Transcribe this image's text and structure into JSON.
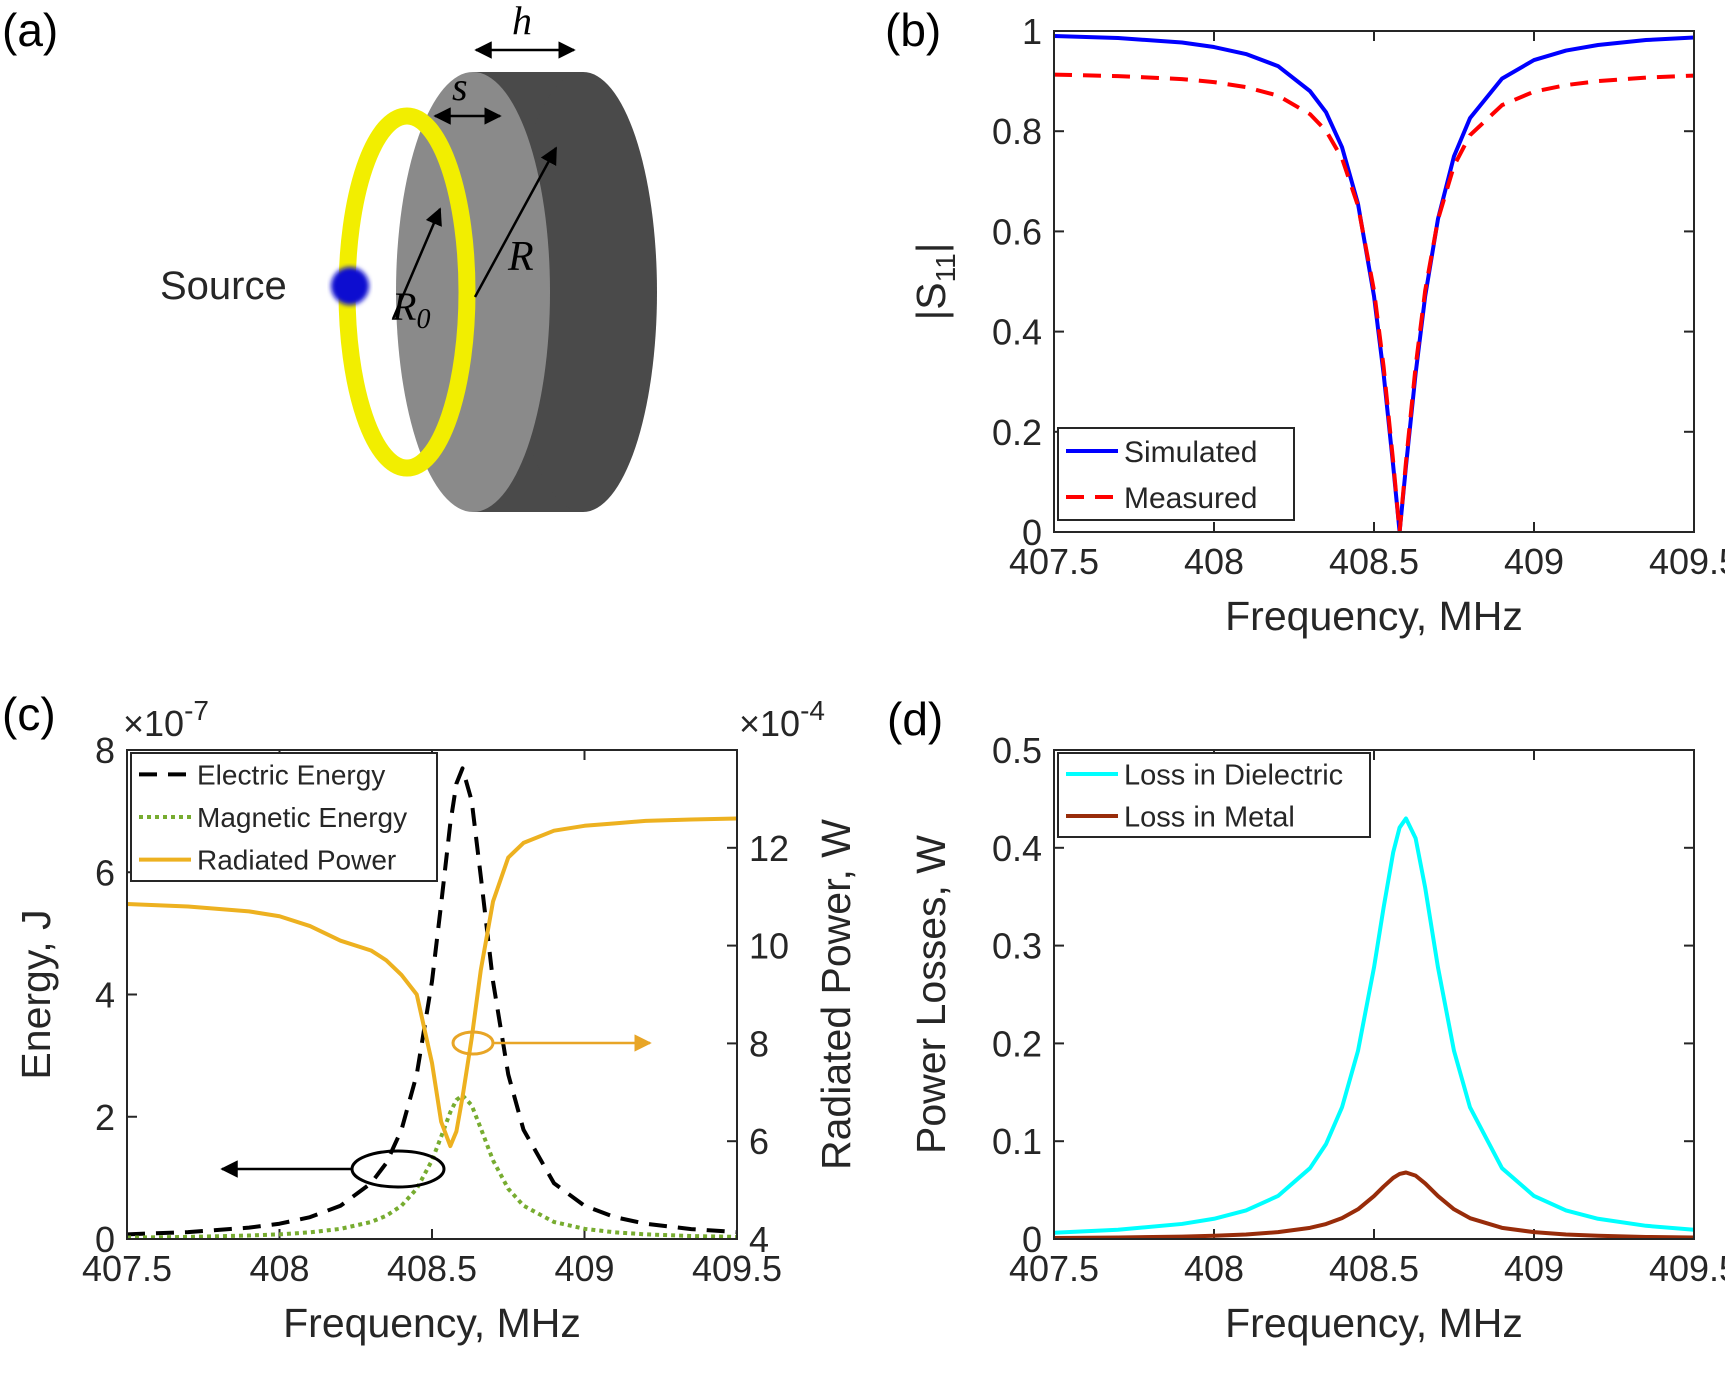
{
  "diagram": {
    "panel_label": "(a)",
    "source": "Source",
    "h": "h",
    "s": "s",
    "R": "R",
    "R0_base": "R",
    "R0_sub": "0"
  },
  "chart_data": [
    {
      "type": "line",
      "panel_label": "(b)",
      "xlabel": "Frequency, MHz",
      "ylabel_prefix": "|S",
      "ylabel_sub": "11",
      "ylabel_suffix": "|",
      "x": [
        407.5,
        407.7,
        407.9,
        408.0,
        408.1,
        408.2,
        408.3,
        408.35,
        408.4,
        408.45,
        408.5,
        408.53,
        408.56,
        408.58,
        408.6,
        408.63,
        408.66,
        408.7,
        408.75,
        408.8,
        408.9,
        409.0,
        409.1,
        409.2,
        409.35,
        409.5
      ],
      "xlim": [
        407.5,
        409.5
      ],
      "xticks": [
        407.5,
        408,
        408.5,
        409,
        409.5
      ],
      "ylim": [
        0,
        1
      ],
      "yticks": [
        0,
        0.2,
        0.4,
        0.6,
        0.8,
        1
      ],
      "legend": "lower left",
      "series": [
        {
          "name": "Simulated",
          "color": "#0000ff",
          "dash": "solid",
          "values": [
            0.99,
            0.986,
            0.977,
            0.968,
            0.954,
            0.93,
            0.88,
            0.838,
            0.768,
            0.655,
            0.471,
            0.316,
            0.132,
            0,
            0.132,
            0.316,
            0.471,
            0.625,
            0.75,
            0.826,
            0.905,
            0.942,
            0.961,
            0.972,
            0.982,
            0.987
          ]
        },
        {
          "name": "Measured",
          "color": "#ff0000",
          "dash": "dashed",
          "values": [
            0.913,
            0.91,
            0.904,
            0.898,
            0.888,
            0.871,
            0.834,
            0.801,
            0.746,
            0.651,
            0.482,
            0.33,
            0.14,
            0,
            0.14,
            0.33,
            0.482,
            0.624,
            0.731,
            0.792,
            0.852,
            0.879,
            0.892,
            0.9,
            0.907,
            0.911
          ]
        }
      ]
    },
    {
      "type": "line",
      "panel_label": "(c)",
      "xlabel": "Frequency, MHz",
      "ylabel": "Energy, J",
      "y2label": "Radiated Power, W",
      "y_multiplier": "×10",
      "y_exponent": "-7",
      "y2_multiplier": "×10",
      "y2_exponent": "-4",
      "x": [
        407.5,
        407.7,
        407.9,
        408.0,
        408.1,
        408.2,
        408.3,
        408.35,
        408.4,
        408.45,
        408.5,
        408.53,
        408.56,
        408.58,
        408.6,
        408.63,
        408.66,
        408.7,
        408.75,
        408.8,
        408.9,
        409.0,
        409.1,
        409.2,
        409.35,
        409.5
      ],
      "xlim": [
        407.5,
        409.5
      ],
      "xticks": [
        407.5,
        408,
        408.5,
        409,
        409.5
      ],
      "ylim": [
        0,
        8
      ],
      "yticks": [
        0,
        2,
        4,
        6,
        8
      ],
      "y2lim": [
        4,
        14
      ],
      "y2ticks": [
        4,
        6,
        8,
        10,
        12
      ],
      "legend": "upper left",
      "series": [
        {
          "name": "Electric Energy",
          "color": "#000000",
          "dash": "dashed",
          "values": [
            0.076,
            0.113,
            0.186,
            0.25,
            0.357,
            0.544,
            0.912,
            1.241,
            1.787,
            2.692,
            4.217,
            5.48,
            6.8,
            7.45,
            7.7,
            7.17,
            5.93,
            4.217,
            2.692,
            1.787,
            0.912,
            0.544,
            0.357,
            0.25,
            0.162,
            0.113
          ]
        },
        {
          "name": "Magnetic Energy",
          "color": "#77ac30",
          "dash": "dotted",
          "values": [
            0.023,
            0.034,
            0.057,
            0.076,
            0.109,
            0.166,
            0.278,
            0.379,
            0.545,
            0.822,
            1.287,
            1.673,
            2.075,
            2.274,
            2.35,
            2.188,
            1.81,
            1.287,
            0.822,
            0.545,
            0.278,
            0.166,
            0.109,
            0.076,
            0.049,
            0.034
          ]
        },
        {
          "name": "Radiated Power",
          "color": "#edb120",
          "dash": "solid",
          "axis": "y2",
          "values": [
            10.85,
            10.8,
            10.7,
            10.6,
            10.4,
            10.1,
            9.9,
            9.7,
            9.4,
            9.0,
            7.6,
            6.4,
            5.9,
            6.2,
            6.9,
            8.1,
            9.5,
            10.9,
            11.8,
            12.1,
            12.35,
            12.45,
            12.5,
            12.55,
            12.58,
            12.6
          ]
        }
      ]
    },
    {
      "type": "line",
      "panel_label": "(d)",
      "xlabel": "Frequency, MHz",
      "ylabel": "Power  Losses, W",
      "x": [
        407.5,
        407.7,
        407.9,
        408.0,
        408.1,
        408.2,
        408.3,
        408.35,
        408.4,
        408.45,
        408.5,
        408.53,
        408.56,
        408.58,
        408.6,
        408.63,
        408.66,
        408.7,
        408.75,
        408.8,
        408.9,
        409.0,
        409.1,
        409.2,
        409.35,
        409.5
      ],
      "xlim": [
        407.5,
        409.5
      ],
      "xticks": [
        407.5,
        408,
        408.5,
        409,
        409.5
      ],
      "ylim": [
        0,
        0.5
      ],
      "yticks": [
        0,
        0.1,
        0.2,
        0.3,
        0.4,
        0.5
      ],
      "legend": "upper left",
      "series": [
        {
          "name": "Loss in Dielectric",
          "color": "#00ffff",
          "dash": "solid",
          "values": [
            0.0064,
            0.0095,
            0.0154,
            0.0207,
            0.0292,
            0.044,
            0.0724,
            0.097,
            0.1346,
            0.1924,
            0.2776,
            0.3389,
            0.3953,
            0.4207,
            0.43,
            0.4098,
            0.3591,
            0.2776,
            0.1924,
            0.1346,
            0.0724,
            0.044,
            0.0292,
            0.0207,
            0.0135,
            0.0095
          ]
        },
        {
          "name": "Loss in Metal",
          "color": "#982c0a",
          "dash": "solid",
          "values": [
            0.001,
            0.0015,
            0.0024,
            0.0033,
            0.0046,
            0.007,
            0.0114,
            0.0153,
            0.0213,
            0.0304,
            0.0439,
            0.0536,
            0.0625,
            0.0665,
            0.068,
            0.0648,
            0.0568,
            0.0439,
            0.0304,
            0.0213,
            0.0114,
            0.007,
            0.0046,
            0.0033,
            0.0021,
            0.0015
          ]
        }
      ]
    }
  ]
}
